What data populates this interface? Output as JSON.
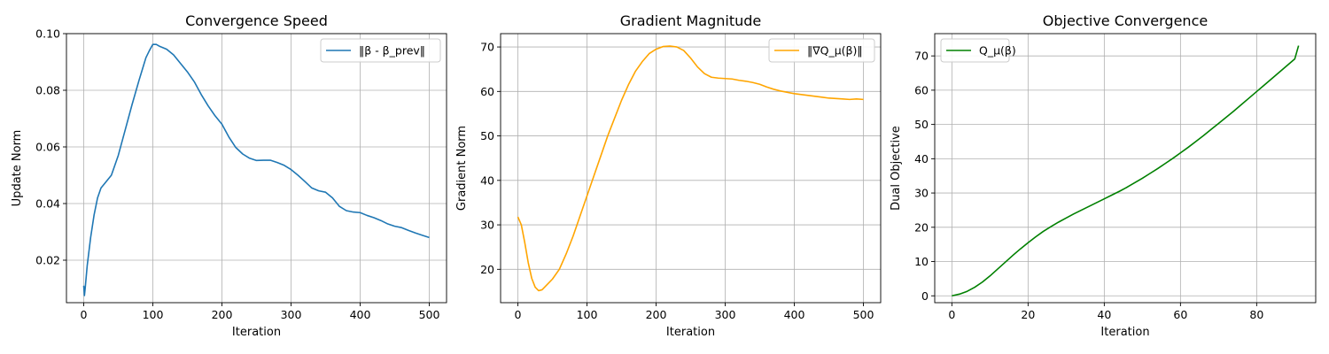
{
  "chart_data": [
    {
      "type": "line",
      "title": "Convergence Speed",
      "xlabel": "Iteration",
      "ylabel": "Update Norm",
      "xlim": [
        -25,
        525
      ],
      "ylim": [
        0.005,
        0.1
      ],
      "xticks": [
        0,
        100,
        200,
        300,
        400,
        500
      ],
      "yticks": [
        0.02,
        0.04,
        0.06,
        0.08,
        0.1
      ],
      "ytick_labels": [
        "0.02",
        "0.04",
        "0.06",
        "0.08",
        "0.10"
      ],
      "grid": true,
      "legend_position": "top-right",
      "series": [
        {
          "name": "‖β - β_prev‖",
          "color": "#1f77b4",
          "x": [
            0,
            1,
            2,
            5,
            10,
            15,
            20,
            25,
            30,
            40,
            50,
            60,
            70,
            80,
            85,
            90,
            95,
            100,
            105,
            110,
            120,
            130,
            140,
            150,
            160,
            170,
            180,
            190,
            200,
            210,
            220,
            230,
            240,
            250,
            260,
            270,
            280,
            290,
            300,
            310,
            320,
            330,
            340,
            350,
            360,
            370,
            380,
            390,
            400,
            410,
            420,
            430,
            440,
            450,
            460,
            470,
            480,
            490,
            500
          ],
          "y": [
            0.011,
            0.0075,
            0.0098,
            0.018,
            0.028,
            0.036,
            0.042,
            0.0455,
            0.047,
            0.05,
            0.057,
            0.066,
            0.075,
            0.0835,
            0.0875,
            0.0915,
            0.094,
            0.0962,
            0.0962,
            0.0955,
            0.0945,
            0.0925,
            0.0895,
            0.0865,
            0.083,
            0.0785,
            0.0745,
            0.071,
            0.068,
            0.0635,
            0.0598,
            0.0575,
            0.056,
            0.0552,
            0.0553,
            0.0553,
            0.0545,
            0.0535,
            0.052,
            0.05,
            0.0478,
            0.0455,
            0.0445,
            0.044,
            0.042,
            0.039,
            0.0375,
            0.037,
            0.0368,
            0.0358,
            0.035,
            0.034,
            0.0328,
            0.032,
            0.0315,
            0.0305,
            0.0296,
            0.0288,
            0.028
          ]
        }
      ]
    },
    {
      "type": "line",
      "title": "Gradient Magnitude",
      "xlabel": "Iteration",
      "ylabel": "Gradient Norm",
      "xlim": [
        -25,
        525
      ],
      "ylim": [
        12.5,
        73
      ],
      "xticks": [
        0,
        100,
        200,
        300,
        400,
        500
      ],
      "yticks": [
        20,
        30,
        40,
        50,
        60,
        70
      ],
      "ytick_labels": [
        "20",
        "30",
        "40",
        "50",
        "60",
        "70"
      ],
      "grid": true,
      "legend_position": "top-right",
      "series": [
        {
          "name": "‖∇Q_μ(β)‖",
          "color": "#ffa500",
          "x": [
            0,
            5,
            10,
            15,
            20,
            25,
            30,
            35,
            40,
            50,
            60,
            70,
            80,
            90,
            100,
            110,
            120,
            130,
            140,
            150,
            160,
            170,
            180,
            190,
            200,
            210,
            220,
            230,
            240,
            250,
            260,
            270,
            280,
            290,
            300,
            310,
            320,
            330,
            340,
            350,
            360,
            370,
            380,
            390,
            400,
            410,
            420,
            430,
            440,
            450,
            460,
            470,
            480,
            490,
            500
          ],
          "y": [
            31.8,
            30,
            26,
            21.5,
            18,
            16,
            15.2,
            15.4,
            16.2,
            17.8,
            20,
            23.5,
            27.5,
            32,
            36.5,
            41,
            45.5,
            50,
            54,
            58,
            61.5,
            64.5,
            66.7,
            68.5,
            69.5,
            70.1,
            70.2,
            70,
            69.2,
            67.5,
            65.5,
            64,
            63.2,
            63,
            62.9,
            62.8,
            62.5,
            62.3,
            62,
            61.6,
            61,
            60.5,
            60.1,
            59.8,
            59.5,
            59.3,
            59.1,
            58.9,
            58.7,
            58.5,
            58.4,
            58.3,
            58.2,
            58.3,
            58.2
          ]
        }
      ]
    },
    {
      "type": "line",
      "title": "Objective Convergence",
      "xlabel": "Iteration",
      "ylabel": "Dual Objective",
      "xlim": [
        -4.5,
        95.5
      ],
      "ylim": [
        -2,
        76.5
      ],
      "xticks": [
        0,
        20,
        40,
        60,
        80
      ],
      "yticks": [
        0,
        10,
        20,
        30,
        40,
        50,
        60,
        70
      ],
      "ytick_labels": [
        "0",
        "10",
        "20",
        "30",
        "40",
        "50",
        "60",
        "70"
      ],
      "grid": true,
      "legend_position": "top-left",
      "series": [
        {
          "name": "Q_μ(β)",
          "color": "#008000",
          "x": [
            0,
            2,
            4,
            6,
            8,
            10,
            12,
            14,
            16,
            18,
            20,
            22,
            24,
            26,
            28,
            30,
            32,
            34,
            36,
            38,
            40,
            42,
            44,
            46,
            48,
            50,
            52,
            54,
            56,
            58,
            60,
            62,
            64,
            66,
            68,
            70,
            72,
            74,
            76,
            78,
            80,
            82,
            84,
            86,
            88,
            90,
            91
          ],
          "y": [
            0,
            0.5,
            1.3,
            2.5,
            4,
            5.8,
            7.8,
            9.8,
            11.8,
            13.7,
            15.5,
            17.2,
            18.8,
            20.2,
            21.5,
            22.7,
            23.9,
            25,
            26.1,
            27.2,
            28.3,
            29.4,
            30.5,
            31.7,
            33,
            34.3,
            35.7,
            37.1,
            38.6,
            40.1,
            41.7,
            43.3,
            45,
            46.7,
            48.5,
            50.3,
            52.1,
            53.9,
            55.8,
            57.7,
            59.6,
            61.5,
            63.4,
            65.3,
            67.2,
            69.1,
            73
          ]
        }
      ]
    }
  ]
}
